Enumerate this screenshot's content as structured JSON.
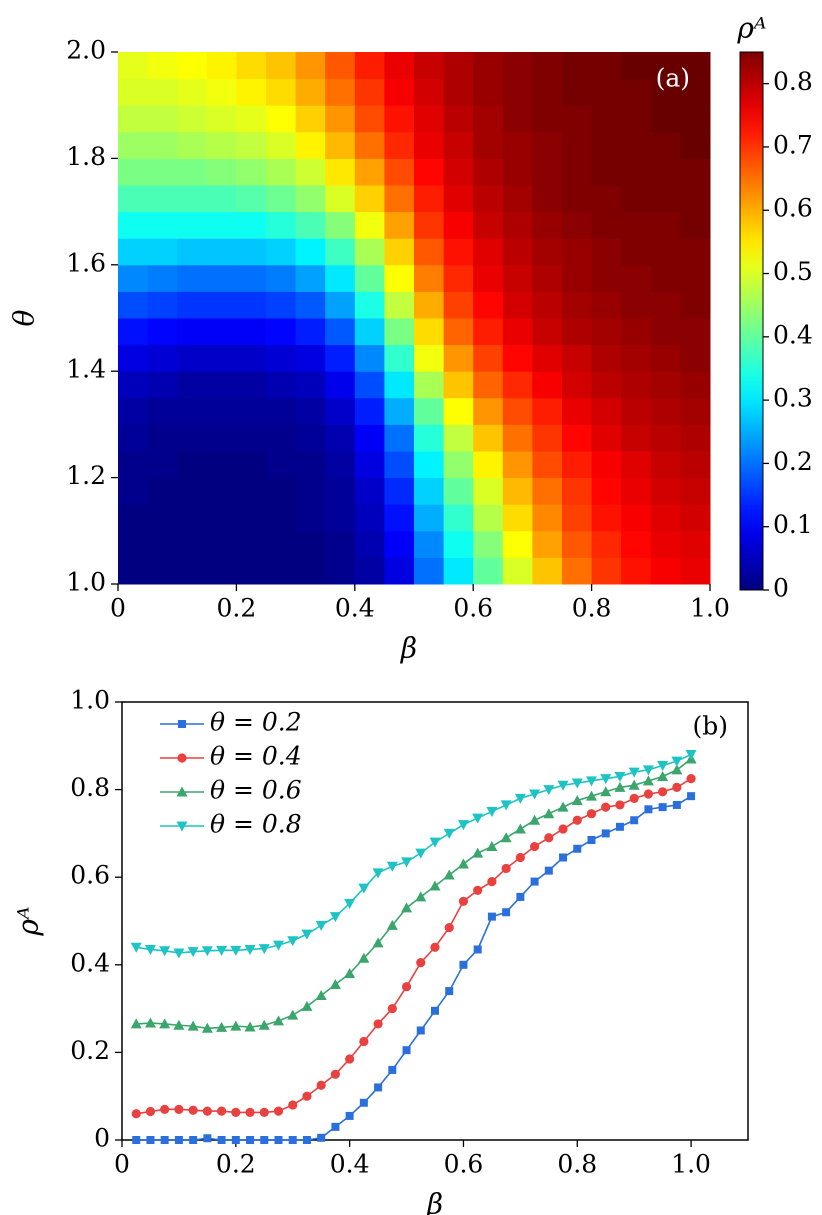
{
  "chart_data": [
    {
      "type": "heatmap",
      "annotation": "(a)",
      "x_label": "β",
      "y_label": "θ",
      "colorbar_label": "ρᴬ",
      "cmap": "jet",
      "xlim": [
        0,
        1
      ],
      "ylim": [
        1,
        2
      ],
      "clim": [
        0,
        0.85
      ],
      "xticks": [
        0,
        0.2,
        0.4,
        0.6,
        0.8,
        {
          "value": 1,
          "label": "1.0"
        }
      ],
      "yticks": [
        {
          "value": 1,
          "label": "1.0"
        },
        1.2,
        1.4,
        1.6,
        1.8,
        {
          "value": 2,
          "label": "2.0"
        }
      ],
      "colorbar_ticks": [
        0,
        0.1,
        0.2,
        0.3,
        0.4,
        0.5,
        0.6,
        0.7,
        0.8
      ],
      "z": [
        [
          0,
          0,
          0,
          0,
          0,
          0,
          0,
          0.01,
          0.03,
          0.08,
          0.2,
          0.3,
          0.4,
          0.5,
          0.58,
          0.65,
          0.7,
          0.73,
          0.75,
          0.76
        ],
        [
          0,
          0,
          0,
          0,
          0,
          0,
          0,
          0.01,
          0.04,
          0.1,
          0.22,
          0.33,
          0.43,
          0.53,
          0.61,
          0.67,
          0.71,
          0.74,
          0.76,
          0.77
        ],
        [
          0,
          0,
          0,
          0,
          0,
          0,
          0.01,
          0.02,
          0.05,
          0.12,
          0.25,
          0.36,
          0.47,
          0.56,
          0.63,
          0.69,
          0.73,
          0.75,
          0.77,
          0.78
        ],
        [
          0.01,
          0,
          0,
          0,
          0,
          0,
          0.01,
          0.02,
          0.06,
          0.14,
          0.28,
          0.4,
          0.5,
          0.59,
          0.65,
          0.7,
          0.74,
          0.76,
          0.78,
          0.79
        ],
        [
          0.01,
          0.01,
          0,
          0,
          0,
          0.01,
          0.01,
          0.03,
          0.08,
          0.17,
          0.31,
          0.44,
          0.54,
          0.62,
          0.68,
          0.72,
          0.75,
          0.77,
          0.79,
          0.8
        ],
        [
          0.02,
          0.01,
          0.01,
          0.01,
          0.01,
          0.01,
          0.02,
          0.04,
          0.1,
          0.2,
          0.35,
          0.48,
          0.58,
          0.65,
          0.7,
          0.74,
          0.77,
          0.79,
          0.8,
          0.81
        ],
        [
          0.03,
          0.02,
          0.02,
          0.02,
          0.02,
          0.02,
          0.03,
          0.06,
          0.13,
          0.25,
          0.4,
          0.53,
          0.62,
          0.68,
          0.72,
          0.76,
          0.78,
          0.8,
          0.81,
          0.82
        ],
        [
          0.05,
          0.04,
          0.03,
          0.03,
          0.03,
          0.04,
          0.05,
          0.09,
          0.17,
          0.3,
          0.46,
          0.58,
          0.66,
          0.71,
          0.75,
          0.78,
          0.8,
          0.81,
          0.82,
          0.83
        ],
        [
          0.08,
          0.07,
          0.06,
          0.06,
          0.06,
          0.07,
          0.08,
          0.13,
          0.22,
          0.36,
          0.52,
          0.62,
          0.69,
          0.74,
          0.77,
          0.79,
          0.81,
          0.82,
          0.83,
          0.84
        ],
        [
          0.12,
          0.11,
          0.1,
          0.1,
          0.1,
          0.11,
          0.13,
          0.18,
          0.28,
          0.42,
          0.56,
          0.66,
          0.72,
          0.76,
          0.79,
          0.81,
          0.82,
          0.83,
          0.84,
          0.84
        ],
        [
          0.17,
          0.16,
          0.15,
          0.15,
          0.15,
          0.16,
          0.18,
          0.24,
          0.34,
          0.48,
          0.6,
          0.69,
          0.74,
          0.78,
          0.8,
          0.82,
          0.83,
          0.84,
          0.84,
          0.85
        ],
        [
          0.22,
          0.21,
          0.2,
          0.2,
          0.2,
          0.21,
          0.24,
          0.3,
          0.4,
          0.53,
          0.64,
          0.71,
          0.76,
          0.79,
          0.81,
          0.83,
          0.84,
          0.84,
          0.85,
          0.85
        ],
        [
          0.28,
          0.28,
          0.27,
          0.27,
          0.27,
          0.28,
          0.31,
          0.37,
          0.46,
          0.57,
          0.67,
          0.73,
          0.77,
          0.8,
          0.82,
          0.83,
          0.84,
          0.85,
          0.85,
          0.85
        ],
        [
          0.33,
          0.33,
          0.33,
          0.33,
          0.33,
          0.35,
          0.38,
          0.43,
          0.52,
          0.61,
          0.7,
          0.75,
          0.79,
          0.81,
          0.83,
          0.84,
          0.85,
          0.85,
          0.85,
          0.86
        ],
        [
          0.38,
          0.38,
          0.38,
          0.38,
          0.39,
          0.41,
          0.44,
          0.5,
          0.57,
          0.65,
          0.72,
          0.77,
          0.8,
          0.82,
          0.84,
          0.85,
          0.85,
          0.86,
          0.86,
          0.86
        ],
        [
          0.42,
          0.42,
          0.42,
          0.43,
          0.44,
          0.46,
          0.49,
          0.55,
          0.61,
          0.68,
          0.74,
          0.78,
          0.81,
          0.83,
          0.84,
          0.85,
          0.86,
          0.86,
          0.86,
          0.86
        ],
        [
          0.45,
          0.45,
          0.46,
          0.47,
          0.48,
          0.5,
          0.54,
          0.59,
          0.65,
          0.71,
          0.76,
          0.79,
          0.82,
          0.83,
          0.84,
          0.85,
          0.86,
          0.86,
          0.86,
          0.87
        ],
        [
          0.48,
          0.48,
          0.49,
          0.5,
          0.51,
          0.53,
          0.57,
          0.62,
          0.68,
          0.73,
          0.77,
          0.8,
          0.82,
          0.84,
          0.85,
          0.85,
          0.86,
          0.86,
          0.87,
          0.87
        ],
        [
          0.5,
          0.5,
          0.51,
          0.52,
          0.54,
          0.56,
          0.6,
          0.65,
          0.7,
          0.75,
          0.78,
          0.81,
          0.83,
          0.84,
          0.85,
          0.86,
          0.86,
          0.86,
          0.87,
          0.87
        ],
        [
          0.51,
          0.52,
          0.53,
          0.54,
          0.56,
          0.58,
          0.62,
          0.67,
          0.72,
          0.76,
          0.79,
          0.81,
          0.83,
          0.84,
          0.85,
          0.86,
          0.86,
          0.87,
          0.87,
          0.87
        ]
      ]
    },
    {
      "type": "line",
      "annotation": "(b)",
      "x_label": "β",
      "y_label": "ρᴬ",
      "legend": "upper left",
      "xlim": [
        0,
        1.1
      ],
      "ylim": [
        0,
        1
      ],
      "xticks": [
        0,
        0.2,
        0.4,
        0.6,
        0.8,
        {
          "value": 1,
          "label": "1.0"
        }
      ],
      "yticks": [
        0,
        0.2,
        0.4,
        0.6,
        0.8,
        {
          "value": 1,
          "label": "1.0"
        }
      ],
      "x": [
        0.025,
        0.05,
        0.075,
        0.1,
        0.125,
        0.15,
        0.175,
        0.2,
        0.225,
        0.25,
        0.275,
        0.3,
        0.325,
        0.35,
        0.375,
        0.4,
        0.425,
        0.45,
        0.475,
        0.5,
        0.525,
        0.55,
        0.575,
        0.6,
        0.625,
        0.65,
        0.675,
        0.7,
        0.725,
        0.75,
        0.775,
        0.8,
        0.825,
        0.85,
        0.875,
        0.9,
        0.925,
        0.95,
        0.975,
        1
      ],
      "series": [
        {
          "name": "θ = 0.2",
          "color": "#2a6fdb",
          "marker": "square",
          "values": [
            0,
            0,
            0,
            0,
            0,
            0.004,
            0,
            0,
            0,
            0,
            0,
            0,
            0,
            0.005,
            0.03,
            0.055,
            0.085,
            0.12,
            0.16,
            0.205,
            0.25,
            0.295,
            0.34,
            0.4,
            0.435,
            0.51,
            0.52,
            0.555,
            0.59,
            0.615,
            0.645,
            0.665,
            0.685,
            0.7,
            0.715,
            0.73,
            0.755,
            0.76,
            0.765,
            0.785
          ]
        },
        {
          "name": "θ = 0.4",
          "color": "#e8413f",
          "marker": "circle",
          "values": [
            0.06,
            0.065,
            0.07,
            0.07,
            0.068,
            0.066,
            0.066,
            0.063,
            0.063,
            0.063,
            0.066,
            0.08,
            0.1,
            0.125,
            0.15,
            0.185,
            0.225,
            0.265,
            0.3,
            0.35,
            0.405,
            0.44,
            0.485,
            0.545,
            0.57,
            0.59,
            0.62,
            0.645,
            0.67,
            0.69,
            0.71,
            0.73,
            0.745,
            0.76,
            0.765,
            0.78,
            0.79,
            0.795,
            0.805,
            0.825
          ]
        },
        {
          "name": "θ = 0.6",
          "color": "#3aa66b",
          "marker": "triangle-up",
          "values": [
            0.265,
            0.267,
            0.265,
            0.262,
            0.26,
            0.255,
            0.257,
            0.26,
            0.258,
            0.262,
            0.272,
            0.285,
            0.305,
            0.33,
            0.355,
            0.38,
            0.415,
            0.45,
            0.49,
            0.53,
            0.555,
            0.58,
            0.605,
            0.63,
            0.655,
            0.67,
            0.69,
            0.71,
            0.73,
            0.745,
            0.76,
            0.775,
            0.785,
            0.795,
            0.805,
            0.81,
            0.82,
            0.83,
            0.845,
            0.87
          ]
        },
        {
          "name": "θ = 0.8",
          "color": "#1ec4c4",
          "marker": "triangle-down",
          "values": [
            0.44,
            0.435,
            0.432,
            0.427,
            0.43,
            0.432,
            0.433,
            0.433,
            0.435,
            0.437,
            0.445,
            0.455,
            0.47,
            0.49,
            0.51,
            0.54,
            0.575,
            0.61,
            0.625,
            0.635,
            0.655,
            0.68,
            0.7,
            0.72,
            0.735,
            0.75,
            0.765,
            0.78,
            0.79,
            0.8,
            0.81,
            0.815,
            0.82,
            0.825,
            0.83,
            0.84,
            0.845,
            0.855,
            0.865,
            0.88
          ]
        }
      ]
    }
  ]
}
